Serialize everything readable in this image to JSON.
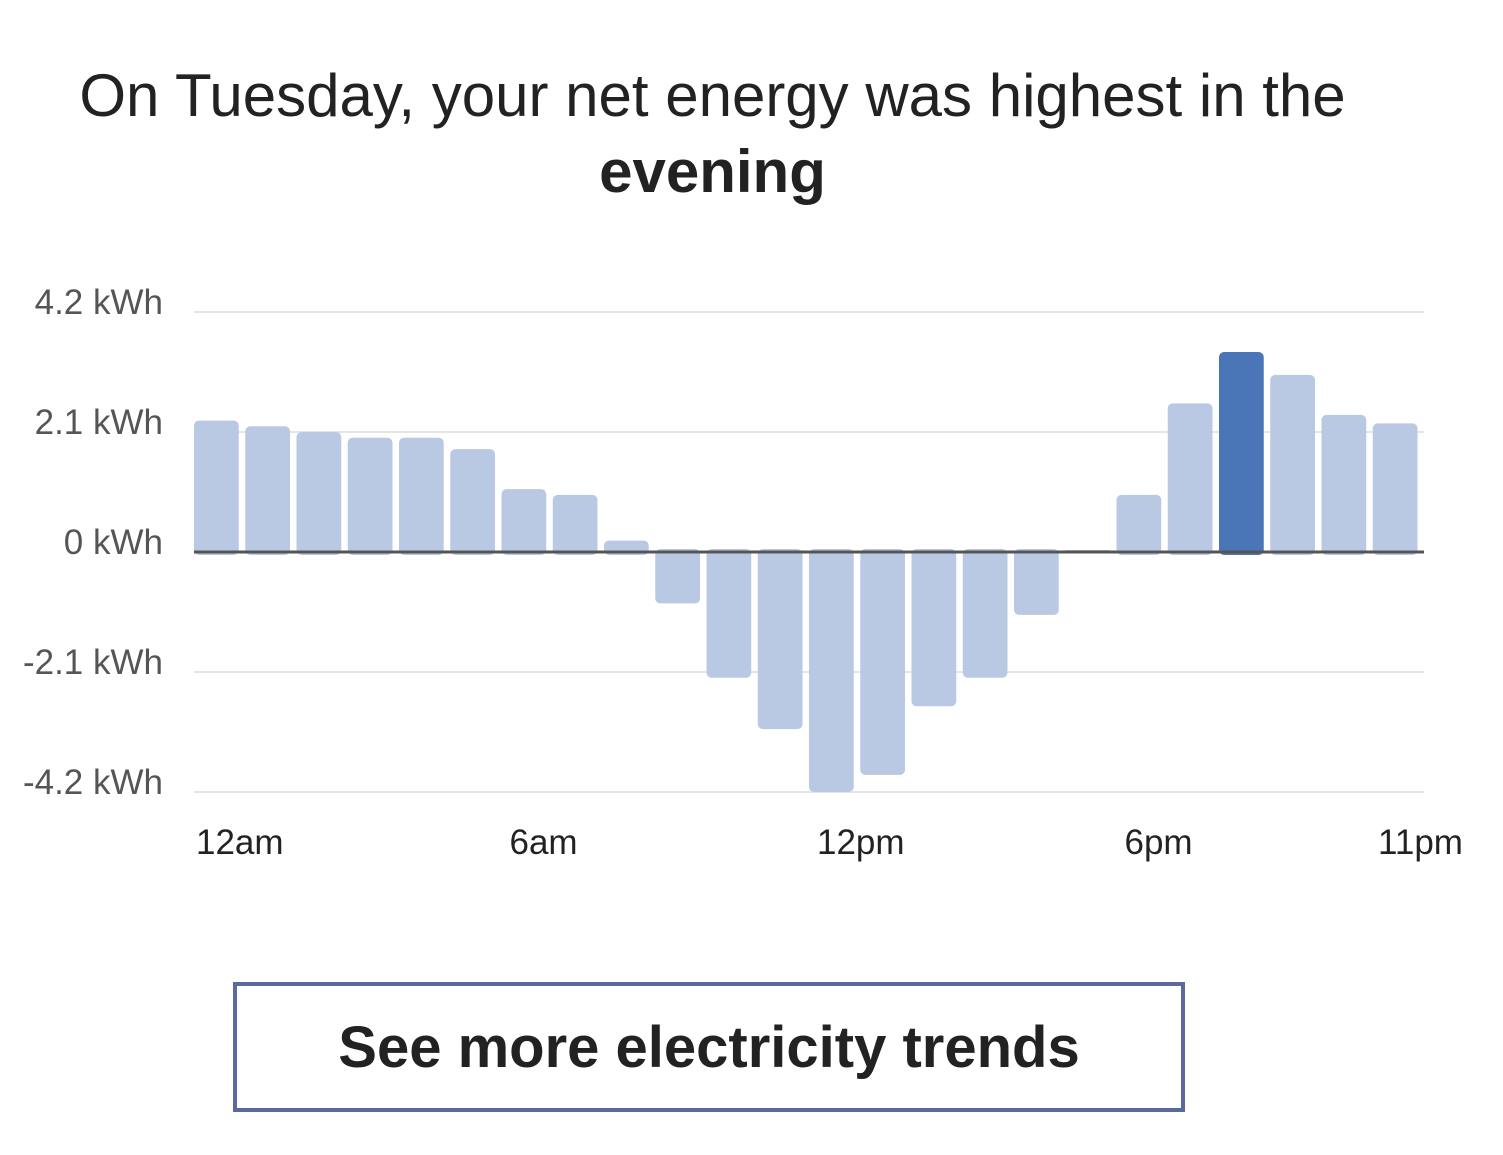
{
  "headline": {
    "line1": "On Tuesday, your net energy was highest in the",
    "line2": "evening"
  },
  "cta": {
    "label": "See more electricity trends"
  },
  "colors": {
    "bar": "#b9c9e3",
    "bar_highlight": "#4a76b8",
    "gridline": "#e6e6e6",
    "zero_line": "#555555",
    "tick_text": "#555555",
    "axis_text": "#222222",
    "button_border": "#5a6a9e"
  },
  "chart_data": {
    "type": "bar",
    "title": "",
    "xlabel": "",
    "ylabel": "",
    "unit": "kWh",
    "ylim": [
      -4.2,
      4.2
    ],
    "yticks": [
      {
        "value": 4.2,
        "label": "4.2 kWh"
      },
      {
        "value": 2.1,
        "label": "2.1 kWh"
      },
      {
        "value": 0,
        "label": "0 kWh"
      },
      {
        "value": -2.1,
        "label": "-2.1 kWh"
      },
      {
        "value": -4.2,
        "label": "-4.2 kWh"
      }
    ],
    "categories": [
      "12am",
      "1am",
      "2am",
      "3am",
      "4am",
      "5am",
      "6am",
      "7am",
      "8am",
      "9am",
      "10am",
      "11am",
      "12pm",
      "1pm",
      "2pm",
      "3pm",
      "4pm",
      "5pm",
      "6pm",
      "7pm",
      "8pm",
      "9pm",
      "10pm",
      "11pm"
    ],
    "xtick_labels": [
      {
        "index": 0,
        "label": "12am"
      },
      {
        "index": 6,
        "label": "6am"
      },
      {
        "index": 12,
        "label": "12pm"
      },
      {
        "index": 18,
        "label": "6pm"
      },
      {
        "index": 23,
        "label": "11pm"
      }
    ],
    "values": [
      2.3,
      2.2,
      2.1,
      2.0,
      2.0,
      1.8,
      1.1,
      1.0,
      0.2,
      -0.9,
      -2.2,
      -3.1,
      -4.2,
      -3.9,
      -2.7,
      -2.2,
      -1.1,
      0.0,
      1.0,
      2.6,
      3.5,
      3.1,
      2.4,
      2.25
    ],
    "highlight_index": 20,
    "grid": true,
    "legend": "none"
  }
}
